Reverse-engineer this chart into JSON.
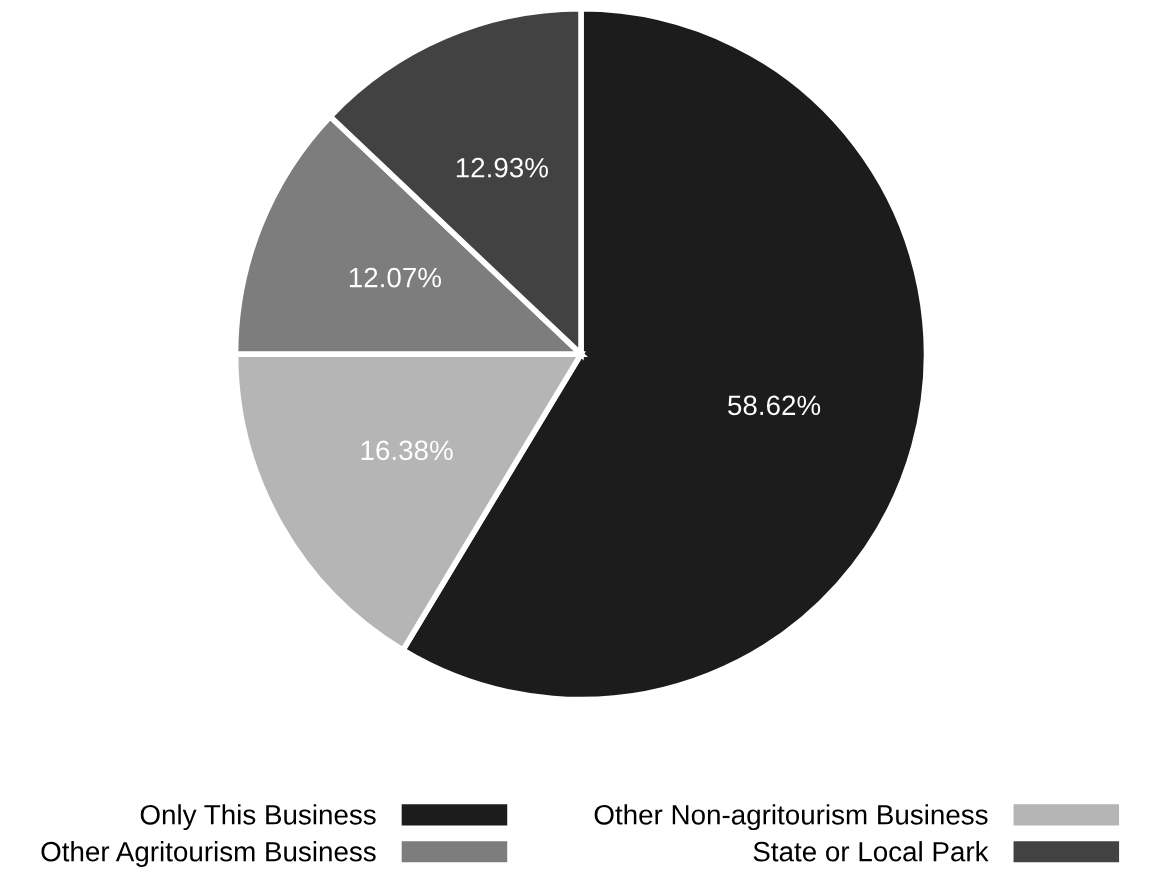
{
  "chart_data": {
    "type": "pie",
    "categories": [
      "Only This Business",
      "Other Non-agritourism Business",
      "Other Agritourism Business",
      "State or Local Park"
    ],
    "values": [
      58.62,
      16.38,
      12.07,
      12.93
    ],
    "colors": [
      "#1c1c1c",
      "#b5b5b5",
      "#7d7d7d",
      "#424242"
    ],
    "value_labels": [
      "58.62%",
      "16.38%",
      "12.07%",
      "12.93%"
    ],
    "legend": "bottom"
  }
}
